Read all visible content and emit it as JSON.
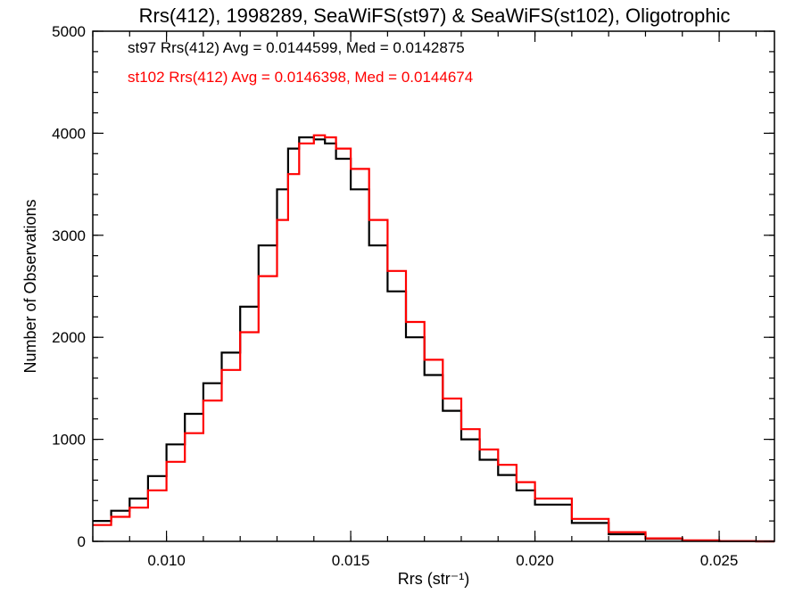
{
  "chart_data": {
    "type": "line",
    "title": "Rrs(412), 1998289, SeaWiFS(st97) & SeaWiFS(st102), Oligotrophic",
    "xlabel": "Rrs (str⁻¹)",
    "ylabel": "Number of Observations",
    "xlim": [
      0.008,
      0.0265
    ],
    "ylim": [
      0,
      5000
    ],
    "x_ticks": [
      "0.010",
      "0.015",
      "0.020",
      "0.025"
    ],
    "y_ticks": [
      "0",
      "1000",
      "2000",
      "3000",
      "4000",
      "5000"
    ],
    "grid": false,
    "annotations": [
      {
        "text": "st97 Rrs(412) Avg = 0.0144599, Med = 0.0142875",
        "color": "#000000"
      },
      {
        "text": "st102 Rrs(412) Avg = 0.0146398, Med = 0.0144674",
        "color": "#ff0000"
      }
    ],
    "series": [
      {
        "color": "#000000",
        "style": "step",
        "x": [
          0.008,
          0.0085,
          0.009,
          0.0095,
          0.01,
          0.0105,
          0.011,
          0.0115,
          0.012,
          0.0125,
          0.013,
          0.0133,
          0.0136,
          0.014,
          0.0143,
          0.0146,
          0.015,
          0.0155,
          0.016,
          0.0165,
          0.017,
          0.0175,
          0.018,
          0.0185,
          0.019,
          0.0195,
          0.02,
          0.021,
          0.022,
          0.023,
          0.024,
          0.025,
          0.026,
          0.0265
        ],
        "y": [
          200,
          300,
          420,
          640,
          950,
          1250,
          1550,
          1850,
          2300,
          2900,
          3450,
          3850,
          3960,
          3940,
          3900,
          3750,
          3450,
          2900,
          2450,
          2000,
          1630,
          1280,
          1000,
          800,
          650,
          500,
          360,
          180,
          70,
          25,
          8,
          2,
          0,
          0
        ]
      },
      {
        "color": "#ff0000",
        "style": "step",
        "x": [
          0.008,
          0.0085,
          0.009,
          0.0095,
          0.01,
          0.0105,
          0.011,
          0.0115,
          0.012,
          0.0125,
          0.013,
          0.0133,
          0.0136,
          0.014,
          0.0143,
          0.0146,
          0.015,
          0.0155,
          0.016,
          0.0165,
          0.017,
          0.0175,
          0.018,
          0.0185,
          0.019,
          0.0195,
          0.02,
          0.021,
          0.022,
          0.023,
          0.024,
          0.025,
          0.026,
          0.0265
        ],
        "y": [
          160,
          240,
          330,
          500,
          780,
          1060,
          1380,
          1680,
          2050,
          2600,
          3150,
          3600,
          3900,
          3980,
          3960,
          3850,
          3650,
          3150,
          2650,
          2150,
          1780,
          1400,
          1100,
          900,
          750,
          580,
          420,
          220,
          90,
          30,
          10,
          3,
          0,
          0
        ]
      }
    ]
  }
}
